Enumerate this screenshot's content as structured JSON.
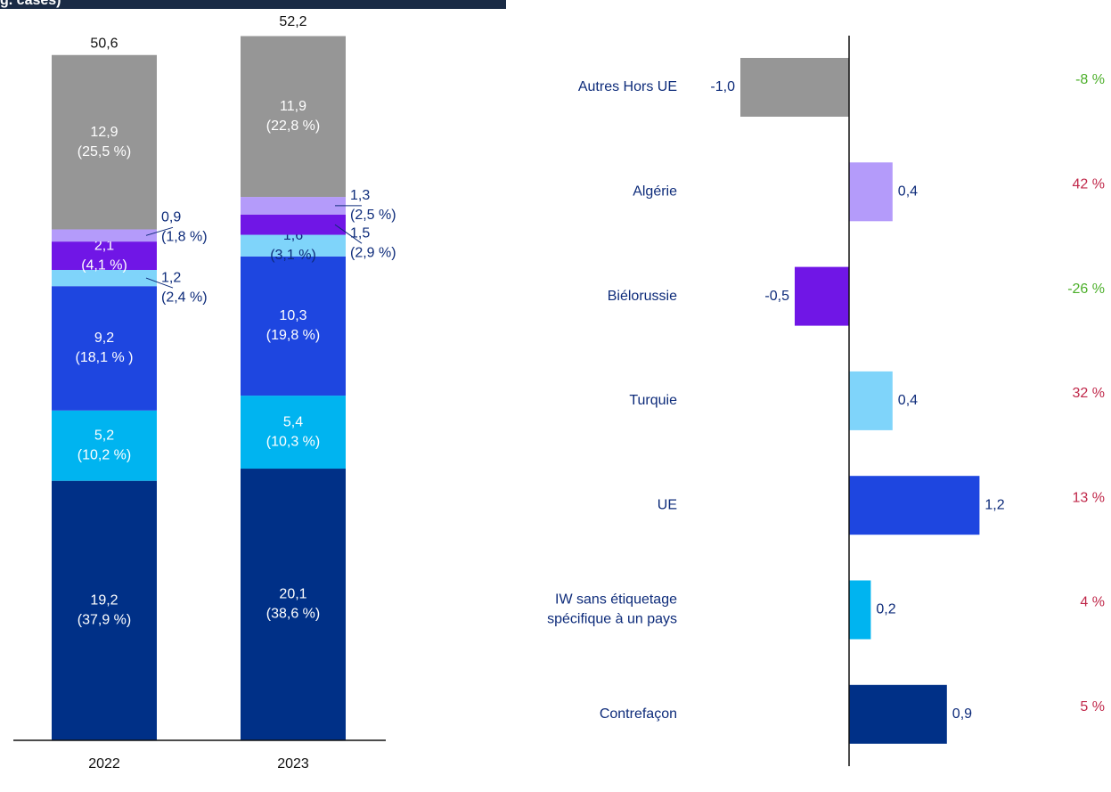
{
  "chart_data": [
    {
      "type": "stacked_bar",
      "title": "g. cases)",
      "categories": [
        "2022",
        "2023"
      ],
      "ylim": [
        0,
        55
      ],
      "series": [
        {
          "color": "#003087",
          "values": [
            19.2,
            20.1
          ],
          "value_labels": [
            "19,2",
            "20,1"
          ],
          "shares": [
            37.9,
            38.6
          ],
          "share_labels": [
            "(37,9 %)",
            "(38,6 %)"
          ]
        },
        {
          "color": "#00b4f0",
          "values": [
            5.2,
            5.4
          ],
          "value_labels": [
            "5,2",
            "5,4"
          ],
          "shares": [
            10.2,
            10.3
          ],
          "share_labels": [
            "(10,2 %)",
            "(10,3 %)"
          ]
        },
        {
          "color": "#1e46e0",
          "values": [
            9.2,
            10.3
          ],
          "value_labels": [
            "9,2",
            "10,3"
          ],
          "shares": [
            18.1,
            19.8
          ],
          "share_labels": [
            "(18,1 % )",
            "(19,8 %)"
          ]
        },
        {
          "color": "#7fd4fa",
          "values": [
            1.2,
            1.6
          ],
          "value_labels": [
            "1,2",
            "1,6"
          ],
          "shares": [
            2.4,
            3.1
          ],
          "share_labels": [
            "(2,4 %)",
            "(3,1 %)"
          ]
        },
        {
          "color": "#7016e6",
          "values": [
            2.1,
            1.5
          ],
          "value_labels": [
            "2,1",
            "1,5"
          ],
          "shares": [
            4.1,
            2.9
          ],
          "share_labels": [
            "(4,1 %)",
            "(2,9 %)"
          ]
        },
        {
          "color": "#b49bfa",
          "values": [
            0.9,
            1.3
          ],
          "value_labels": [
            "0,9",
            "1,3"
          ],
          "shares": [
            1.8,
            2.5
          ],
          "share_labels": [
            "(1,8 %)",
            "(2,5 %)"
          ]
        },
        {
          "color": "#969696",
          "values": [
            12.9,
            11.9
          ],
          "value_labels": [
            "12,9",
            "11,9"
          ],
          "shares": [
            25.5,
            22.8
          ],
          "share_labels": [
            "(25,5 %)",
            "(22,8 %)"
          ]
        }
      ],
      "totals": [
        50.6,
        52.2
      ],
      "total_labels": [
        "50,6",
        "52,2"
      ]
    },
    {
      "type": "hbar",
      "categories": [
        "Autres Hors UE",
        "Algérie",
        "Biélorussie",
        "Turquie",
        "UE",
        "IW sans étiquetage\nspécifique à un pays",
        "Contrefaçon"
      ],
      "values": [
        -1.0,
        0.4,
        -0.5,
        0.4,
        1.2,
        0.2,
        0.9
      ],
      "value_labels": [
        "-1,0",
        "0,4",
        "-0,5",
        "0,4",
        "1,2",
        "0,2",
        "0,9"
      ],
      "colors": [
        "#969696",
        "#b49bfa",
        "#7016e6",
        "#7fd4fa",
        "#1e46e0",
        "#00b4f0",
        "#003087"
      ],
      "changes": [
        -8,
        42,
        -26,
        32,
        13,
        4,
        5
      ],
      "change_labels": [
        "-8 %",
        "42 %",
        "-26 %",
        "32 %",
        "13 %",
        "4 %",
        "5 %"
      ],
      "up_color": "#c0284a",
      "down_color": "#4caf2a",
      "xlim": [
        -1.5,
        2.3
      ]
    }
  ]
}
